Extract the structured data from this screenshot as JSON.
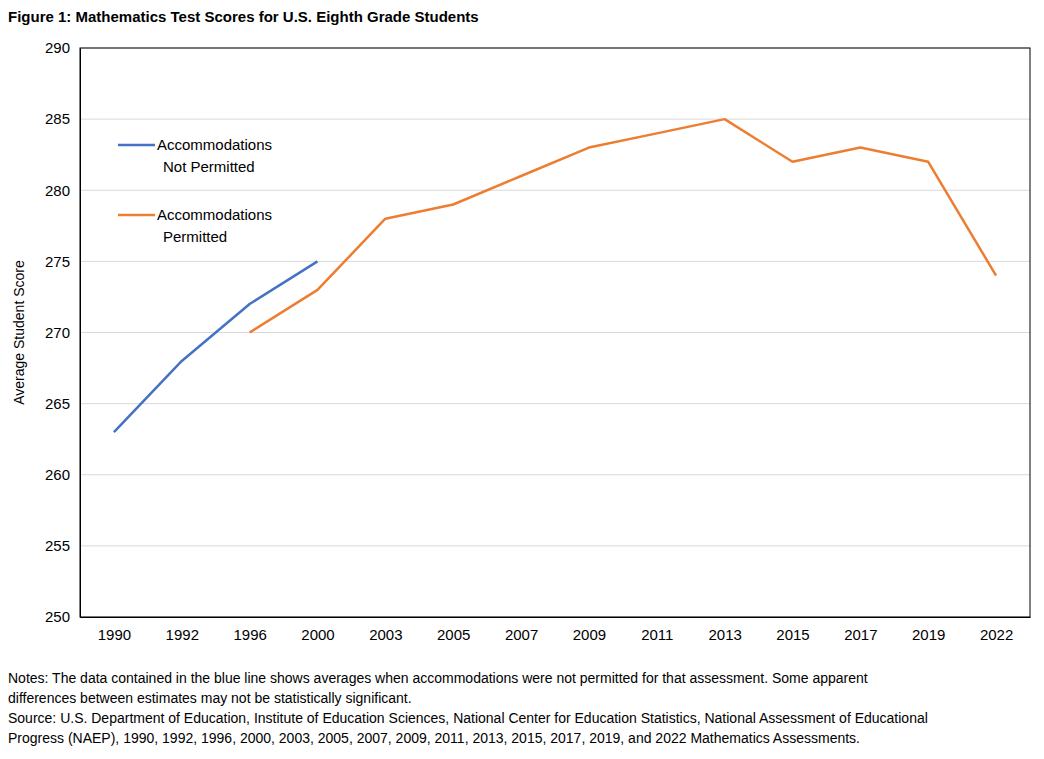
{
  "chart_data": {
    "type": "line",
    "title": "Figure 1: Mathematics Test Scores for U.S. Eighth Grade Students",
    "y_label": "Average Student Score",
    "categories": [
      "1990",
      "1992",
      "1996",
      "2000",
      "2003",
      "2005",
      "2007",
      "2009",
      "2011",
      "2013",
      "2015",
      "2017",
      "2019",
      "2022"
    ],
    "series": [
      {
        "name": "Accommodations Not Permitted",
        "color": "#4472c4",
        "values": [
          263,
          268,
          272,
          275,
          null,
          null,
          null,
          null,
          null,
          null,
          null,
          null,
          null,
          null
        ]
      },
      {
        "name": "Accommodations Permitted",
        "color": "#ed7d31",
        "values": [
          null,
          null,
          270,
          273,
          278,
          279,
          281,
          283,
          284,
          285,
          282,
          283,
          282,
          274
        ]
      }
    ],
    "ylim": [
      250,
      290
    ],
    "yticks": [
      250,
      255,
      260,
      265,
      270,
      275,
      280,
      285,
      290
    ],
    "grid": true,
    "legend": "upper left",
    "notes": [
      "Notes: The data contained in the blue line shows averages when accommodations were not permitted for that assessment. Some apparent",
      "differences between estimates may not be statistically significant."
    ],
    "source": [
      "Source: U.S. Department of Education, Institute of Education Sciences, National Center for Education Statistics, National Assessment of Educational",
      "Progress (NAEP), 1990, 1992, 1996, 2000, 2003, 2005, 2007, 2009, 2011, 2013, 2015, 2017, 2019, and 2022  Mathematics Assessments."
    ]
  }
}
